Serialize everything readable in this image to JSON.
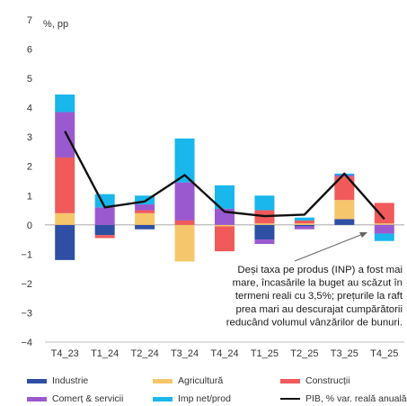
{
  "chart_data": {
    "type": "bar",
    "stacked": true,
    "unit_label": "%, pp",
    "categories": [
      "T4_23",
      "T1_24",
      "T2_24",
      "T3_24",
      "T4_24",
      "T1_25",
      "T2_25",
      "T3_25",
      "T4_25"
    ],
    "ylim": [
      -4,
      7
    ],
    "yticks": [
      -4,
      -3,
      -2,
      -1,
      0,
      1,
      2,
      3,
      4,
      5,
      6,
      7
    ],
    "grid": false,
    "legend_position": "bottom",
    "series": [
      {
        "name": "Industrie",
        "color": "#2e4fa3",
        "values": [
          -1.2,
          -0.35,
          -0.15,
          0.0,
          0.0,
          -0.5,
          -0.05,
          0.2,
          0.0
        ]
      },
      {
        "name": "Agricultură",
        "color": "#f5c66b",
        "values": [
          0.4,
          0.0,
          0.4,
          -1.25,
          -0.05,
          0.05,
          0.05,
          0.65,
          0.05
        ]
      },
      {
        "name": "Construcții",
        "color": "#f05a5a",
        "values": [
          1.9,
          -0.1,
          0.1,
          0.15,
          -0.85,
          0.45,
          0.1,
          0.8,
          0.7
        ]
      },
      {
        "name": "Comerț & servicii",
        "color": "#9b59d0",
        "values": [
          1.55,
          0.6,
          0.2,
          1.3,
          0.55,
          -0.15,
          -0.1,
          0.05,
          -0.3
        ]
      },
      {
        "name": "Imp net/prod",
        "color": "#19b7ec",
        "values": [
          0.6,
          0.45,
          0.3,
          1.5,
          0.8,
          0.5,
          0.1,
          0.05,
          -0.25
        ]
      }
    ],
    "line": {
      "name": "PIB, % var. reală anuală",
      "color": "#111111",
      "values": [
        3.2,
        0.6,
        0.8,
        1.7,
        0.45,
        0.3,
        0.35,
        1.75,
        0.2
      ]
    },
    "annotation": {
      "lines": [
        "Deși taxa pe produs (INP) a fost mai",
        "mare, încasările la buget au scăzut în",
        "termeni reali cu 3,5%; prețurile la raft",
        "prea mari au descurajat cumpărătorii",
        "reducând volumul vânzărilor de bunuri."
      ]
    }
  }
}
